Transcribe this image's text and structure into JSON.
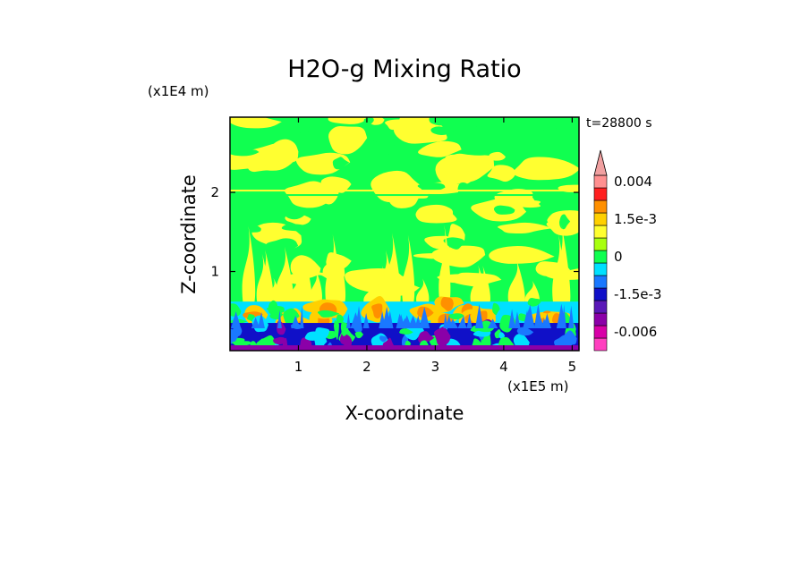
{
  "chart_data": {
    "type": "heatmap",
    "title": "H2O-g Mixing Ratio",
    "xlabel": "X-coordinate",
    "ylabel": "Z-coordinate",
    "x_scale_label": "(x1E5 m)",
    "y_scale_label": "(x1E4 m)",
    "time_label": "t=28800 s",
    "xlim": [
      0,
      5.1
    ],
    "ylim": [
      0,
      2.95
    ],
    "x_ticks": [
      {
        "value": 1,
        "label": "1"
      },
      {
        "value": 2,
        "label": "2"
      },
      {
        "value": 3,
        "label": "3"
      },
      {
        "value": 4,
        "label": "4"
      },
      {
        "value": 5,
        "label": "5"
      }
    ],
    "y_ticks": [
      {
        "value": 1,
        "label": "1"
      },
      {
        "value": 2,
        "label": "2"
      }
    ],
    "colorbar": {
      "levels": [
        {
          "color": "#ff3fbf",
          "label": ""
        },
        {
          "color": "#d800a8",
          "label": "-0.006"
        },
        {
          "color": "#8b00a8",
          "label": ""
        },
        {
          "color": "#5a18b8",
          "label": ""
        },
        {
          "color": "#1010c8",
          "label": "-1.5e-3"
        },
        {
          "color": "#1a78ff",
          "label": ""
        },
        {
          "color": "#00e0ff",
          "label": ""
        },
        {
          "color": "#10ff50",
          "label": "0"
        },
        {
          "color": "#a8ff10",
          "label": ""
        },
        {
          "color": "#ffff30",
          "label": ""
        },
        {
          "color": "#ffd000",
          "label": "1.5e-3"
        },
        {
          "color": "#ff9000",
          "label": ""
        },
        {
          "color": "#ff2020",
          "label": ""
        },
        {
          "color": "#ff9090",
          "label": "0.004"
        }
      ],
      "extend_top_color": "#f0a0a0"
    },
    "field_bands": [
      {
        "z_from": 0.0,
        "z_to": 0.35,
        "dominant": "#1010c8",
        "mixed_with": [
          "#8b00a8",
          "#1a78ff",
          "#00e0ff",
          "#10ff50"
        ]
      },
      {
        "z_from": 0.35,
        "z_to": 0.62,
        "dominant": "#00e0ff",
        "mixed_with": [
          "#ff9000",
          "#ffd000",
          "#10ff50"
        ]
      },
      {
        "z_from": 0.62,
        "z_to": 2.95,
        "dominant": "#10ff50",
        "mixed_with": [
          "#ffff30"
        ]
      }
    ]
  }
}
